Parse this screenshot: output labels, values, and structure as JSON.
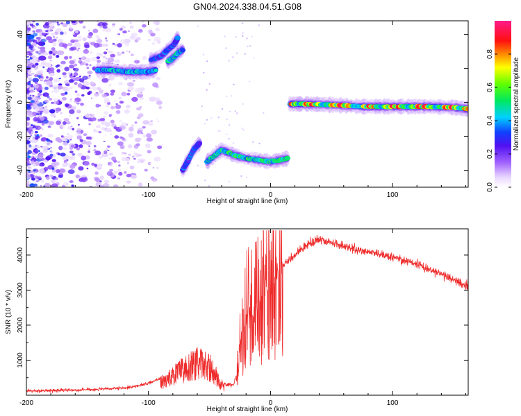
{
  "title": "GN04.2024.338.04.51.G08",
  "chart_data": [
    {
      "type": "heatmap",
      "xlabel": "Height of straight line (km)",
      "ylabel": "Frequency (Hz)",
      "xlim": [
        -200,
        162
      ],
      "ylim": [
        -50,
        48
      ],
      "xticks": [
        -200,
        -100,
        0,
        100
      ],
      "yticks": [
        -40,
        -20,
        0,
        20,
        40
      ],
      "colorbar": {
        "label": "Normalized spectral amplitude",
        "range": [
          0,
          1
        ],
        "ticks": [
          0.0,
          0.2,
          0.4,
          0.6,
          0.8
        ],
        "tick_labels": [
          "0.0",
          "0.2",
          "0.4",
          "0.6",
          "0.8"
        ],
        "colormap": "white-purple-blue-cyan-green-yellow-red-pink"
      },
      "ridges": [
        {
          "name": "upper-positive",
          "x": [
            -142,
            -130,
            -118,
            -108,
            -100,
            -94
          ],
          "y": [
            19,
            19,
            18,
            18,
            18,
            19
          ],
          "amp": 0.45
        },
        {
          "name": "upper-rising-1",
          "x": [
            -98,
            -90,
            -84,
            -79,
            -76
          ],
          "y": [
            25,
            27,
            31,
            34,
            38
          ],
          "amp": 0.35
        },
        {
          "name": "upper-rising-2",
          "x": [
            -84,
            -80,
            -76,
            -72
          ],
          "y": [
            24,
            26,
            29,
            31
          ],
          "amp": 0.5
        },
        {
          "name": "lower-early",
          "x": [
            -72,
            -68,
            -63,
            -58
          ],
          "y": [
            -40,
            -35,
            -28,
            -24
          ],
          "amp": 0.35
        },
        {
          "name": "lower-main",
          "x": [
            -52,
            -45,
            -40,
            -30,
            -20,
            -10,
            0,
            8,
            14
          ],
          "y": [
            -35,
            -31,
            -28,
            -31,
            -33,
            -34,
            -35,
            -34,
            -33
          ],
          "amp": 0.55
        },
        {
          "name": "right-band",
          "x": [
            16,
            30,
            50,
            75,
            90,
            110,
            130,
            150,
            162
          ],
          "y": [
            -1,
            -1,
            -1.5,
            -2.5,
            -2.5,
            -2.5,
            -2.5,
            -3,
            -4
          ],
          "amp": 0.9
        }
      ]
    },
    {
      "type": "line",
      "xlabel": "Height of straight line (km)",
      "ylabel": "SNR (10 * v/v)",
      "xlim": [
        -200,
        162
      ],
      "ylim": [
        0,
        4750
      ],
      "xticks": [
        -200,
        -100,
        0,
        100
      ],
      "yticks": [
        1000,
        2000,
        3000,
        4000
      ],
      "color": "#ee2b2b",
      "envelope": {
        "x": [
          -200,
          -170,
          -140,
          -120,
          -110,
          -100,
          -92,
          -85,
          -80,
          -75,
          -70,
          -65,
          -60,
          -55,
          -50,
          -45,
          -42,
          -38,
          -35,
          -30,
          -28,
          -25,
          -22,
          -20,
          -15,
          -10,
          -5,
          0,
          5,
          10,
          20,
          30,
          40,
          50,
          60,
          70,
          80,
          90,
          100,
          110,
          120,
          130,
          140,
          150,
          162
        ],
        "y": [
          120,
          140,
          170,
          200,
          260,
          340,
          460,
          600,
          750,
          900,
          1050,
          1150,
          1250,
          1200,
          1100,
          800,
          500,
          330,
          300,
          300,
          600,
          1400,
          2000,
          2200,
          2300,
          2600,
          2900,
          3100,
          3400,
          3700,
          4000,
          4300,
          4450,
          4350,
          4250,
          4150,
          4100,
          4000,
          3950,
          3850,
          3750,
          3600,
          3450,
          3300,
          3100
        ]
      }
    }
  ]
}
